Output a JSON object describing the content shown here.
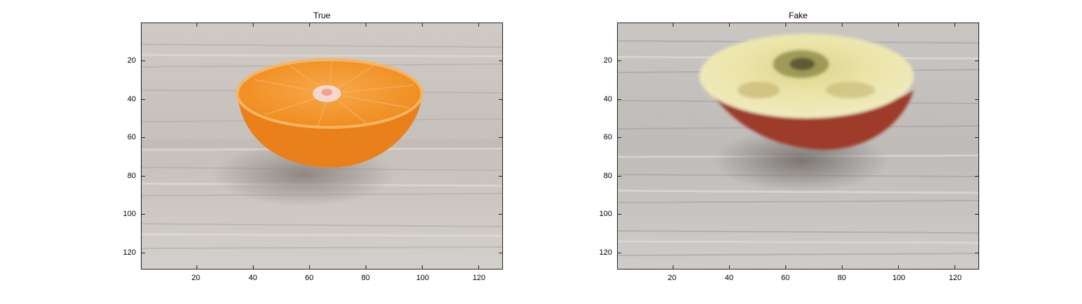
{
  "panels": [
    {
      "title": "True",
      "subject": "halved mandarin orange on light wood surface",
      "colors": {
        "wood": "#c9c4c0",
        "wood_light": "#dcd8d5",
        "wood_dark": "#a9a29d",
        "peel": "#f08a1e",
        "flesh": "#f59a35",
        "shadow": "#8f8782"
      }
    },
    {
      "title": "Fake",
      "subject": "generated halved apple on light wood surface",
      "colors": {
        "wood": "#c3c0bd",
        "wood_light": "#d8d6d3",
        "wood_dark": "#9e9894",
        "skin": "#a8402f",
        "flesh": "#e8e0a0",
        "core": "#6f6a3a",
        "shadow": "#7c7570"
      }
    }
  ],
  "axes": {
    "x_ticks": [
      "20",
      "40",
      "60",
      "80",
      "100",
      "120"
    ],
    "y_ticks": [
      "20",
      "40",
      "60",
      "80",
      "100",
      "120"
    ],
    "x_range": [
      0.5,
      128.5
    ],
    "y_range": [
      0.5,
      128.5
    ]
  }
}
